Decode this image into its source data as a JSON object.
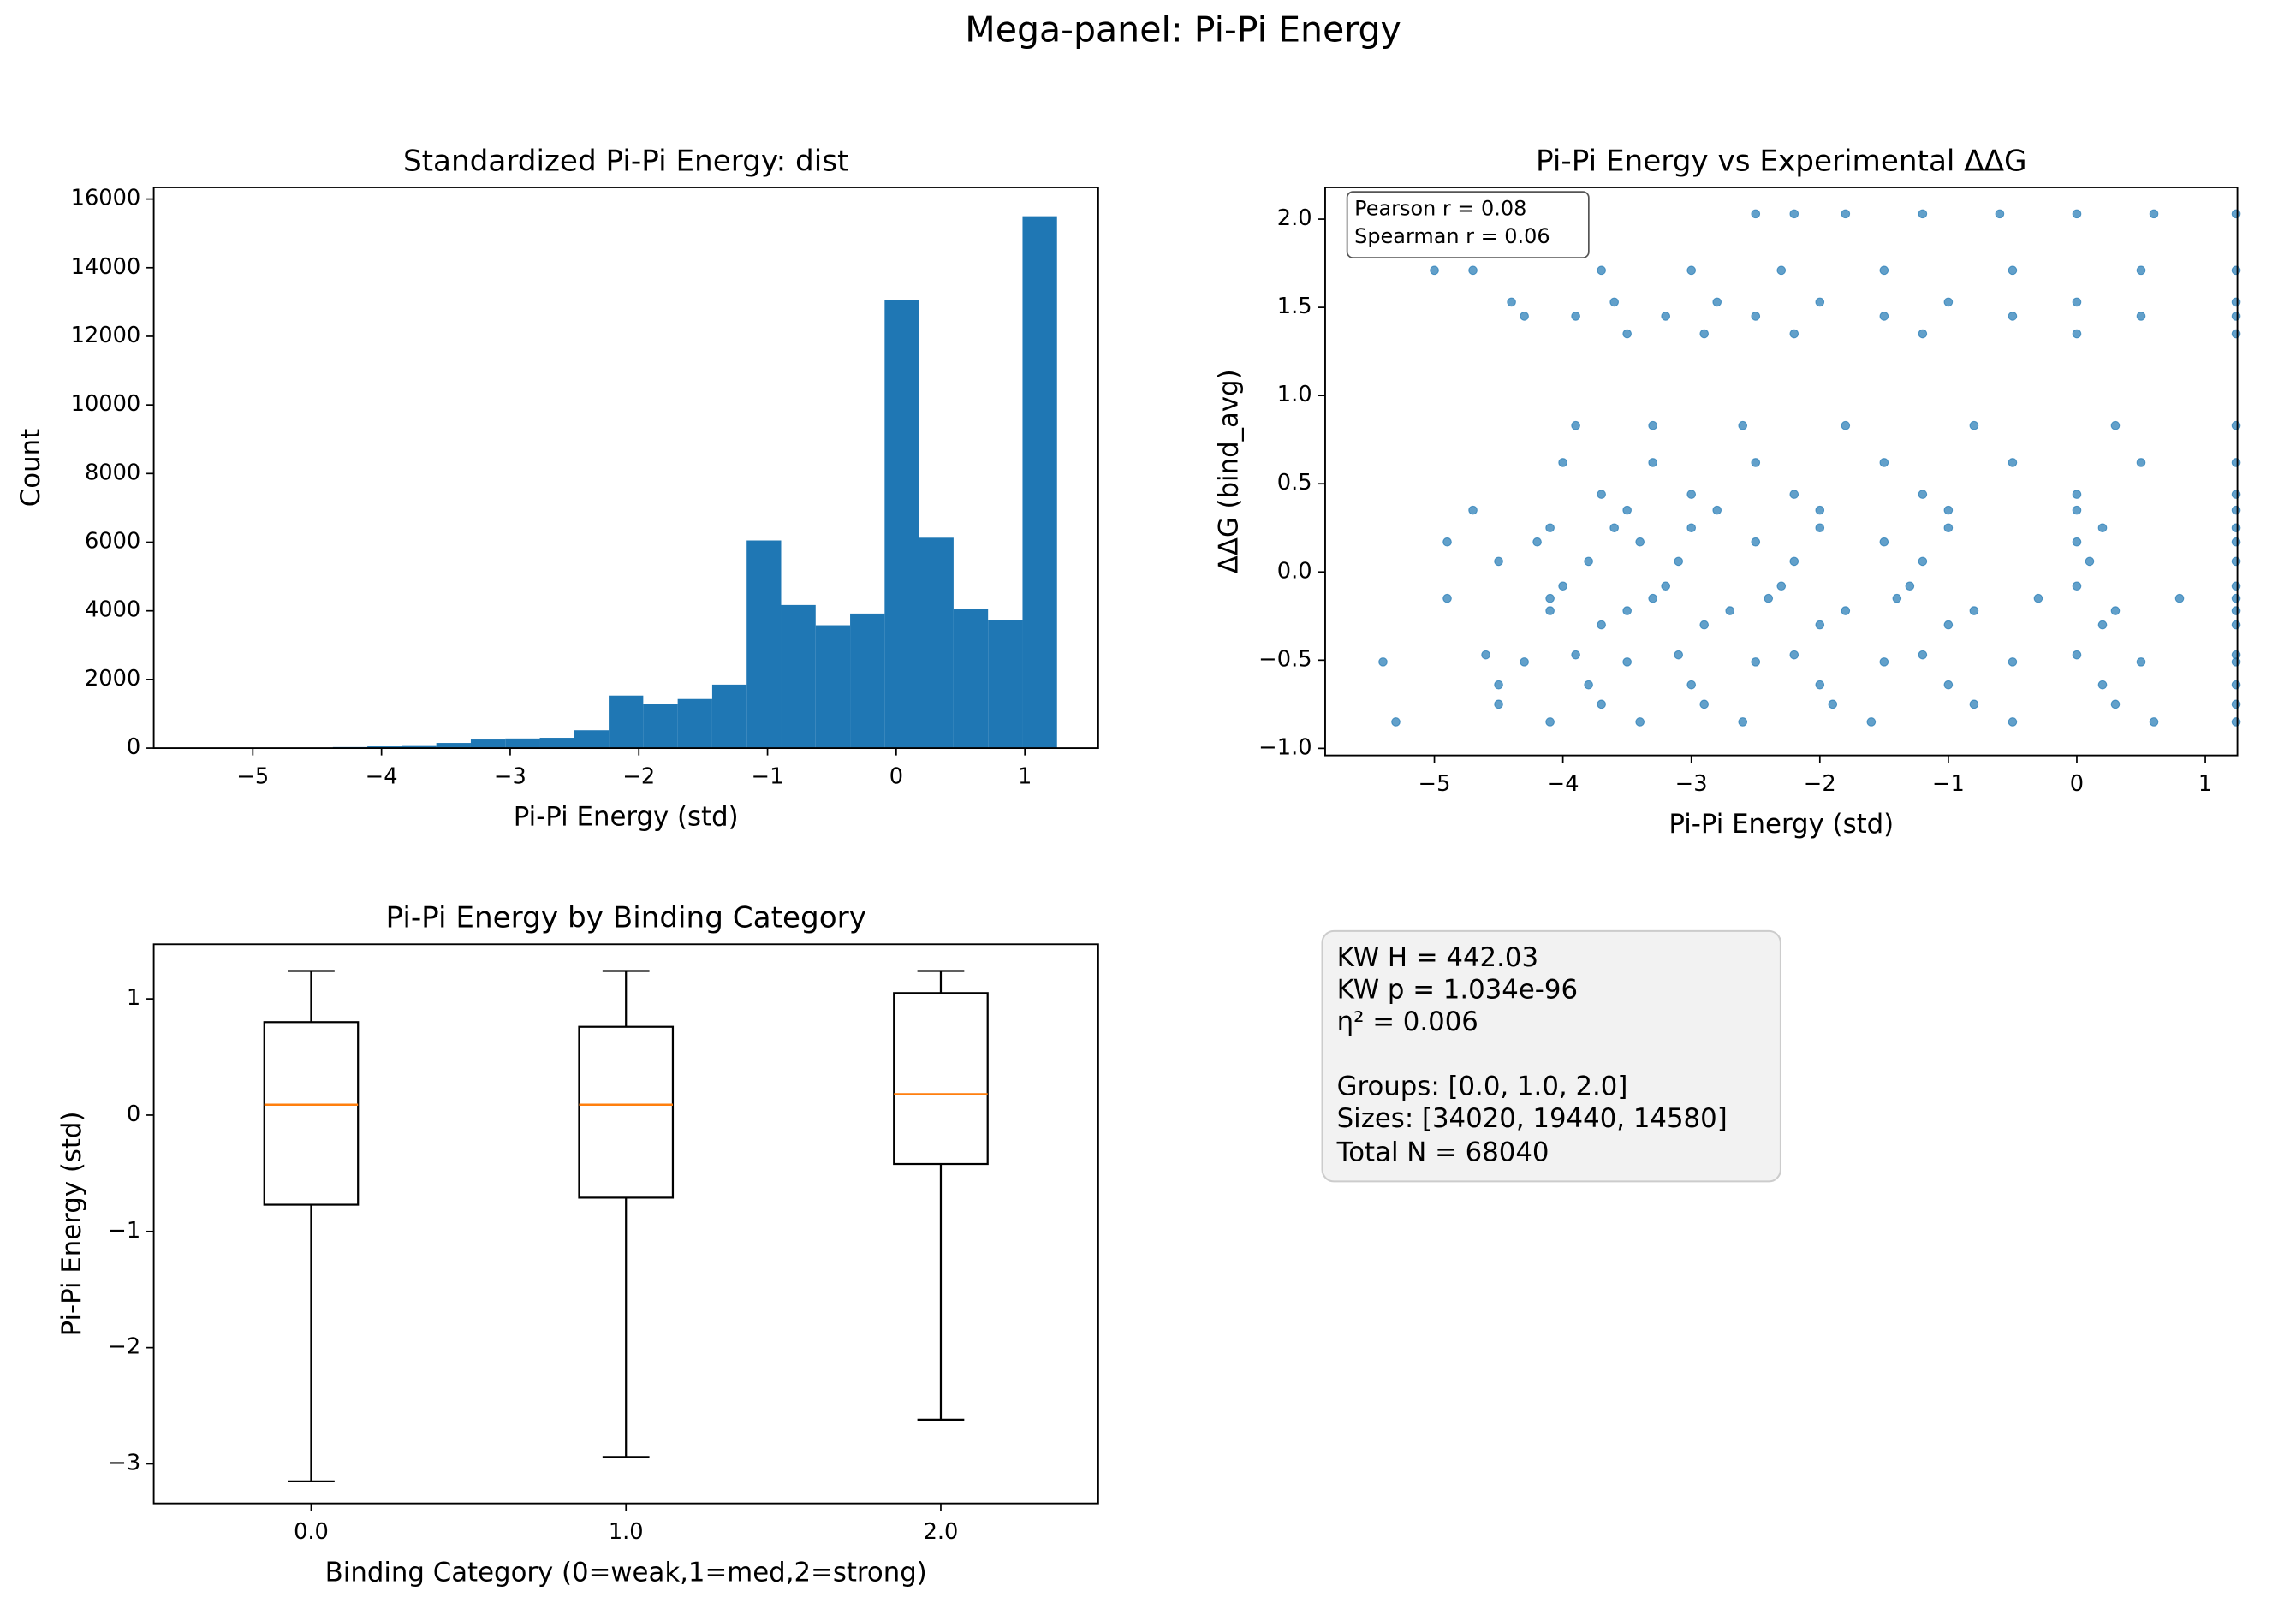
{
  "title": "Mega-panel: Pi-Pi Energy",
  "stats_box": [
    "KW H = 442.03",
    "KW p = 1.034e-96",
    "η² = 0.006",
    "Groups: [0.0, 1.0, 2.0]",
    "Sizes:  [34020, 19440, 14580]",
    "Total N = 68040"
  ],
  "chart_data": [
    {
      "type": "histogram",
      "title": "Standardized Pi-Pi Energy: dist",
      "x_label": "Pi-Pi Energy (std)",
      "y_label": "Count",
      "color": "#1f77b4",
      "bins": [
        -5.45,
        -5.182,
        -4.914,
        -4.646,
        -4.378,
        -4.11,
        -3.842,
        -3.574,
        -3.306,
        -3.038,
        -2.77,
        -2.502,
        -2.234,
        -1.966,
        -1.698,
        -1.43,
        -1.162,
        -0.894,
        -0.626,
        -0.358,
        -0.09,
        0.178,
        0.446,
        0.714,
        0.982,
        1.25
      ],
      "values": [
        0,
        0,
        5,
        10,
        30,
        50,
        60,
        150,
        250,
        280,
        300,
        520,
        1530,
        1280,
        1430,
        1850,
        6050,
        4170,
        3580,
        3920,
        13050,
        6130,
        4060,
        3730,
        15500
      ],
      "xlim": [
        -5.77,
        1.57
      ],
      "ylim": [
        0,
        16340
      ],
      "xticks": [
        {
          "value": -5,
          "label": "−5"
        },
        {
          "value": -4,
          "label": "−4"
        },
        {
          "value": -3,
          "label": "−3"
        },
        {
          "value": -2,
          "label": "−2"
        },
        {
          "value": -1,
          "label": "−1"
        },
        0,
        1
      ],
      "yticks": [
        0,
        2000,
        4000,
        6000,
        8000,
        10000,
        12000,
        14000,
        16000
      ]
    },
    {
      "type": "scatter",
      "title": "Pi-Pi Energy vs Experimental ΔΔG",
      "x_label": "Pi-Pi Energy (std)",
      "y_label": "ΔΔG (bind_avg)",
      "color": "#1f77b4",
      "annotation": [
        "Pearson r = 0.08",
        "Spearman r = 0.06"
      ],
      "x": [
        -2.5,
        -2.2,
        -1.8,
        -1.2,
        -0.6,
        0,
        0.6,
        1.24,
        -5.0,
        -4.7,
        -3.7,
        -3.0,
        -2.3,
        -1.5,
        -0.5,
        0.5,
        1.24,
        -4.4,
        -3.6,
        -2.8,
        -2.0,
        -1.0,
        0,
        1.24,
        -4.3,
        -3.9,
        -3.2,
        -2.5,
        -1.5,
        -0.5,
        0.5,
        1.24,
        -3.5,
        -2.9,
        -2.2,
        -1.2,
        0,
        1.24,
        -3.9,
        -3.3,
        -2.6,
        -1.8,
        -0.8,
        0.3,
        1.24,
        -4.0,
        -3.3,
        -2.5,
        -1.5,
        -0.5,
        0.5,
        1.24,
        -3.7,
        -3.0,
        -2.2,
        -1.2,
        0,
        1.24,
        -4.7,
        -3.5,
        -2.8,
        -2.0,
        -1.0,
        0,
        1.24,
        -4.1,
        -3.6,
        -3.0,
        -2.0,
        -1.0,
        0.2,
        1.24,
        -4.9,
        -4.2,
        -3.4,
        -2.5,
        -1.5,
        0,
        1.24,
        -4.5,
        -3.8,
        -3.1,
        -2.2,
        -1.2,
        0.1,
        1.24,
        -4.0,
        -3.2,
        -2.3,
        -1.3,
        0,
        1.24,
        -4.9,
        -4.1,
        -3.3,
        -2.4,
        -1.4,
        -0.3,
        0.8,
        1.24,
        -4.1,
        -3.5,
        -2.7,
        -1.8,
        -0.8,
        0.3,
        1.24,
        -3.7,
        -2.9,
        -2.0,
        -1.0,
        0.2,
        1.24,
        -4.6,
        -3.9,
        -3.1,
        -2.2,
        -1.2,
        0,
        1.24,
        -5.4,
        -4.3,
        -3.5,
        -2.5,
        -1.5,
        -0.5,
        0.5,
        1.24,
        -4.5,
        -3.8,
        -3.0,
        -2.0,
        -1.0,
        0.2,
        1.24,
        -4.5,
        -3.7,
        -2.9,
        -1.9,
        -0.8,
        0.3,
        1.24,
        -5.3,
        -4.1,
        -3.4,
        -2.6,
        -1.6,
        -0.5,
        0.6,
        1.24
      ],
      "y": [
        2.03,
        2.03,
        2.03,
        2.03,
        2.03,
        2.03,
        2.03,
        2.03,
        1.71,
        1.71,
        1.71,
        1.71,
        1.71,
        1.71,
        1.71,
        1.71,
        1.71,
        1.53,
        1.53,
        1.53,
        1.53,
        1.53,
        1.53,
        1.53,
        1.45,
        1.45,
        1.45,
        1.45,
        1.45,
        1.45,
        1.45,
        1.45,
        1.35,
        1.35,
        1.35,
        1.35,
        1.35,
        1.35,
        0.83,
        0.83,
        0.83,
        0.83,
        0.83,
        0.83,
        0.83,
        0.62,
        0.62,
        0.62,
        0.62,
        0.62,
        0.62,
        0.62,
        0.44,
        0.44,
        0.44,
        0.44,
        0.44,
        0.44,
        0.35,
        0.35,
        0.35,
        0.35,
        0.35,
        0.35,
        0.35,
        0.25,
        0.25,
        0.25,
        0.25,
        0.25,
        0.25,
        0.25,
        0.17,
        0.17,
        0.17,
        0.17,
        0.17,
        0.17,
        0.17,
        0.06,
        0.06,
        0.06,
        0.06,
        0.06,
        0.06,
        0.06,
        -0.08,
        -0.08,
        -0.08,
        -0.08,
        -0.08,
        -0.08,
        -0.15,
        -0.15,
        -0.15,
        -0.15,
        -0.15,
        -0.15,
        -0.15,
        -0.15,
        -0.22,
        -0.22,
        -0.22,
        -0.22,
        -0.22,
        -0.22,
        -0.22,
        -0.3,
        -0.3,
        -0.3,
        -0.3,
        -0.3,
        -0.3,
        -0.47,
        -0.47,
        -0.47,
        -0.47,
        -0.47,
        -0.47,
        -0.47,
        -0.51,
        -0.51,
        -0.51,
        -0.51,
        -0.51,
        -0.51,
        -0.51,
        -0.51,
        -0.64,
        -0.64,
        -0.64,
        -0.64,
        -0.64,
        -0.64,
        -0.64,
        -0.75,
        -0.75,
        -0.75,
        -0.75,
        -0.75,
        -0.75,
        -0.75,
        -0.85,
        -0.85,
        -0.85,
        -0.85,
        -0.85,
        -0.85,
        -0.85,
        -0.85
      ],
      "xlim": [
        -5.85,
        1.25
      ],
      "ylim": [
        -1.04,
        2.18
      ],
      "xticks": [
        {
          "value": -5,
          "label": "−5"
        },
        {
          "value": -4,
          "label": "−4"
        },
        {
          "value": -3,
          "label": "−3"
        },
        {
          "value": -2,
          "label": "−2"
        },
        {
          "value": -1,
          "label": "−1"
        },
        0,
        1
      ],
      "yticks": [
        {
          "value": -1,
          "label": "−1.0"
        },
        {
          "value": -0.5,
          "label": "−0.5"
        },
        {
          "value": 0,
          "label": "0.0"
        },
        0.5,
        {
          "value": 1,
          "label": "1.0"
        },
        1.5,
        {
          "value": 2,
          "label": "2.0"
        }
      ]
    },
    {
      "type": "box",
      "title": "Pi-Pi Energy by Binding Category",
      "x_label": "Binding Category (0=weak,1=med,2=strong)",
      "y_label": "Pi-Pi Energy (std)",
      "color": "#000000",
      "median_color": "#ff7f0e",
      "categories": [
        "0.0",
        "1.0",
        "2.0"
      ],
      "boxes": [
        {
          "whislo": -3.15,
          "q1": -0.77,
          "med": 0.09,
          "q3": 0.8,
          "whishi": 1.24
        },
        {
          "whislo": -2.94,
          "q1": -0.71,
          "med": 0.09,
          "q3": 0.76,
          "whishi": 1.24
        },
        {
          "whislo": -2.62,
          "q1": -0.42,
          "med": 0.18,
          "q3": 1.05,
          "whishi": 1.24
        }
      ],
      "ylim": [
        -3.34,
        1.47
      ],
      "yticks": [
        {
          "value": -3,
          "label": "−3"
        },
        {
          "value": -2,
          "label": "−2"
        },
        {
          "value": -1,
          "label": "−1"
        },
        0,
        1
      ]
    }
  ]
}
